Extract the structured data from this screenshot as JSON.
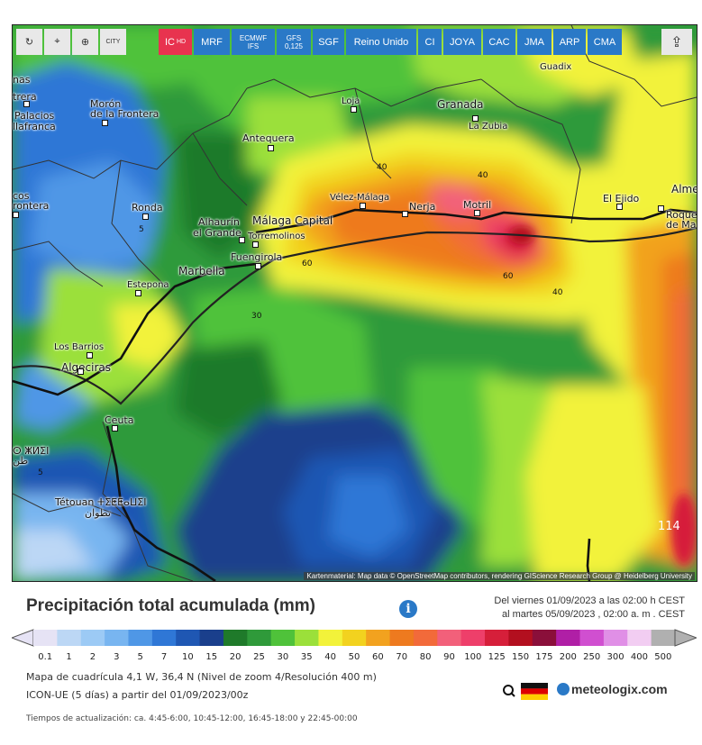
{
  "toolbar": {
    "buttons": [
      {
        "id": "refresh",
        "label": "↻"
      },
      {
        "id": "location",
        "label": "⌖"
      },
      {
        "id": "zoom",
        "label": "⊕"
      },
      {
        "id": "city",
        "label": "CITY"
      },
      {
        "id": "ic",
        "label": "IC",
        "sub": "HD"
      },
      {
        "id": "mrf",
        "label": "MRF"
      },
      {
        "id": "ecmwf",
        "label": "ECMWF",
        "sub": "IFS"
      },
      {
        "id": "gfs",
        "label": "GFS",
        "sub": "0,125"
      },
      {
        "id": "sgf",
        "label": "SGF"
      },
      {
        "id": "reino",
        "label": "Reino Unido"
      },
      {
        "id": "ci",
        "label": "CI"
      },
      {
        "id": "joya",
        "label": "JOYA"
      },
      {
        "id": "cac",
        "label": "CAC"
      },
      {
        "id": "jma",
        "label": "JMA"
      },
      {
        "id": "arp",
        "label": "ARP"
      },
      {
        "id": "cma",
        "label": "CMA"
      },
      {
        "id": "share",
        "label": "⇪"
      }
    ]
  },
  "map": {
    "places": [
      {
        "name": "Guadix"
      },
      {
        "name": "nas"
      },
      {
        "name": "trera"
      },
      {
        "name": "Palacios"
      },
      {
        "name": "llafranca"
      },
      {
        "name": "Morón"
      },
      {
        "name": "de la Frontera"
      },
      {
        "name": "Loja"
      },
      {
        "name": "Granada"
      },
      {
        "name": "La Zubia"
      },
      {
        "name": "Antequera"
      },
      {
        "name": "cos"
      },
      {
        "name": "rontera"
      },
      {
        "name": "Ronda"
      },
      {
        "name": "Vélez-Málaga"
      },
      {
        "name": "Nerja"
      },
      {
        "name": "Motril"
      },
      {
        "name": "El Ejido"
      },
      {
        "name": "Alme"
      },
      {
        "name": "Roque"
      },
      {
        "name": "de Ma"
      },
      {
        "name": "Alhaurín"
      },
      {
        "name": "el Grande"
      },
      {
        "name": "Málaga Capital"
      },
      {
        "name": "Torremolinos"
      },
      {
        "name": "Fuengirola"
      },
      {
        "name": "Marbella"
      },
      {
        "name": "Estepona"
      },
      {
        "name": "Los Barrios"
      },
      {
        "name": "Algeciras"
      },
      {
        "name": "Ceuta"
      },
      {
        "name": "ⵔ ⵥⵍⵉⵏ"
      },
      {
        "name": "طن"
      },
      {
        "name": "Tétouan ⵜⵉⵟⵟⴰⵡⵉⵏ"
      },
      {
        "name": "تطوان"
      }
    ],
    "contour_labels": [
      "40",
      "40",
      "60",
      "60",
      "40",
      "30",
      "5",
      "5",
      "114"
    ],
    "attribution": "Kartenmaterial: Map data © OpenStreetMap contributors, rendering GIScience Research Group @ Heidelberg University"
  },
  "legend": {
    "title": "Precipitación total acumulada (mm)",
    "info_icon": "i",
    "date_from": "Del viernes 01/09/2023 a las 02:00 h CEST",
    "date_to": "al martes 05/09/2023 , 02:00 a. m . CEST",
    "scale": [
      {
        "v": "0.1",
        "c": "#e6e3f5"
      },
      {
        "v": "1",
        "c": "#bcd7f5"
      },
      {
        "v": "2",
        "c": "#9ccaf5"
      },
      {
        "v": "3",
        "c": "#78b5f0"
      },
      {
        "v": "5",
        "c": "#4f97e6"
      },
      {
        "v": "7",
        "c": "#2f77d6"
      },
      {
        "v": "10",
        "c": "#1f57b3"
      },
      {
        "v": "15",
        "c": "#1a3f8c"
      },
      {
        "v": "20",
        "c": "#1f7a2a"
      },
      {
        "v": "25",
        "c": "#2f9a3a"
      },
      {
        "v": "30",
        "c": "#4fc23a"
      },
      {
        "v": "35",
        "c": "#9be03a"
      },
      {
        "v": "40",
        "c": "#f2f23a"
      },
      {
        "v": "50",
        "c": "#f2d21f"
      },
      {
        "v": "60",
        "c": "#f2a21f"
      },
      {
        "v": "70",
        "c": "#ee7a1f"
      },
      {
        "v": "80",
        "c": "#f26a3a"
      },
      {
        "v": "90",
        "c": "#f2607a"
      },
      {
        "v": "100",
        "c": "#ee3f6a"
      },
      {
        "v": "125",
        "c": "#d61f3a"
      },
      {
        "v": "150",
        "c": "#b30f1f"
      },
      {
        "v": "175",
        "c": "#8a0f3a"
      },
      {
        "v": "200",
        "c": "#b01fa6"
      },
      {
        "v": "250",
        "c": "#d04fd0"
      },
      {
        "v": "300",
        "c": "#e08fe6"
      },
      {
        "v": "400",
        "c": "#f2cdf2"
      },
      {
        "v": "500",
        "c": "#b0b0b0"
      }
    ]
  },
  "info": {
    "grid": "Mapa de cuadrícula 4,1 W, 36,4 N (Nivel de zoom 4/Resolución 400 m)",
    "model": "ICON-UE (5 días) a partir del 01/09/2023/00z",
    "updates": "Tiempos de actualización: ca. 4:45-6:00, 10:45-12:00, 16:45-18:00 y 22:45-00:00",
    "hd_icon": "HD",
    "flag": "germany-flag",
    "brand": "meteologix.com"
  }
}
